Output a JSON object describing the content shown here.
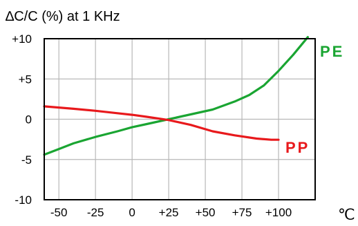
{
  "chart_data": {
    "type": "line",
    "title": "∆C/C (%) at  1 KHz",
    "xlabel": "",
    "ylabel": "",
    "x_unit": "℃",
    "xlim": [
      -60,
      125
    ],
    "ylim": [
      -10,
      10
    ],
    "x_ticks": [
      -50,
      -25,
      0,
      25,
      50,
      75,
      100
    ],
    "x_tick_labels": [
      "-50",
      "-25",
      "0",
      "+25",
      "+50",
      "+75",
      "+100"
    ],
    "y_ticks": [
      10,
      5,
      0,
      -5,
      -10
    ],
    "y_tick_labels": [
      "+10",
      "+5",
      "0",
      "-5",
      "-10"
    ],
    "grid": true,
    "series": [
      {
        "name": "PE",
        "color": "#1aa532",
        "x": [
          -60,
          -50,
          -40,
          -25,
          -10,
          0,
          10,
          25,
          40,
          55,
          70,
          80,
          90,
          100,
          110,
          120
        ],
        "y": [
          -4.4,
          -3.7,
          -3.0,
          -2.2,
          -1.5,
          -1.0,
          -0.6,
          0.0,
          0.6,
          1.2,
          2.2,
          3.0,
          4.2,
          6.0,
          8.0,
          10.2
        ]
      },
      {
        "name": "PP",
        "color": "#e8191c",
        "x": [
          -60,
          -50,
          -40,
          -25,
          -10,
          0,
          10,
          25,
          40,
          55,
          70,
          85,
          95,
          100
        ],
        "y": [
          1.6,
          1.45,
          1.3,
          1.05,
          0.75,
          0.55,
          0.3,
          -0.1,
          -0.7,
          -1.5,
          -2.0,
          -2.4,
          -2.55,
          -2.55
        ]
      }
    ]
  }
}
